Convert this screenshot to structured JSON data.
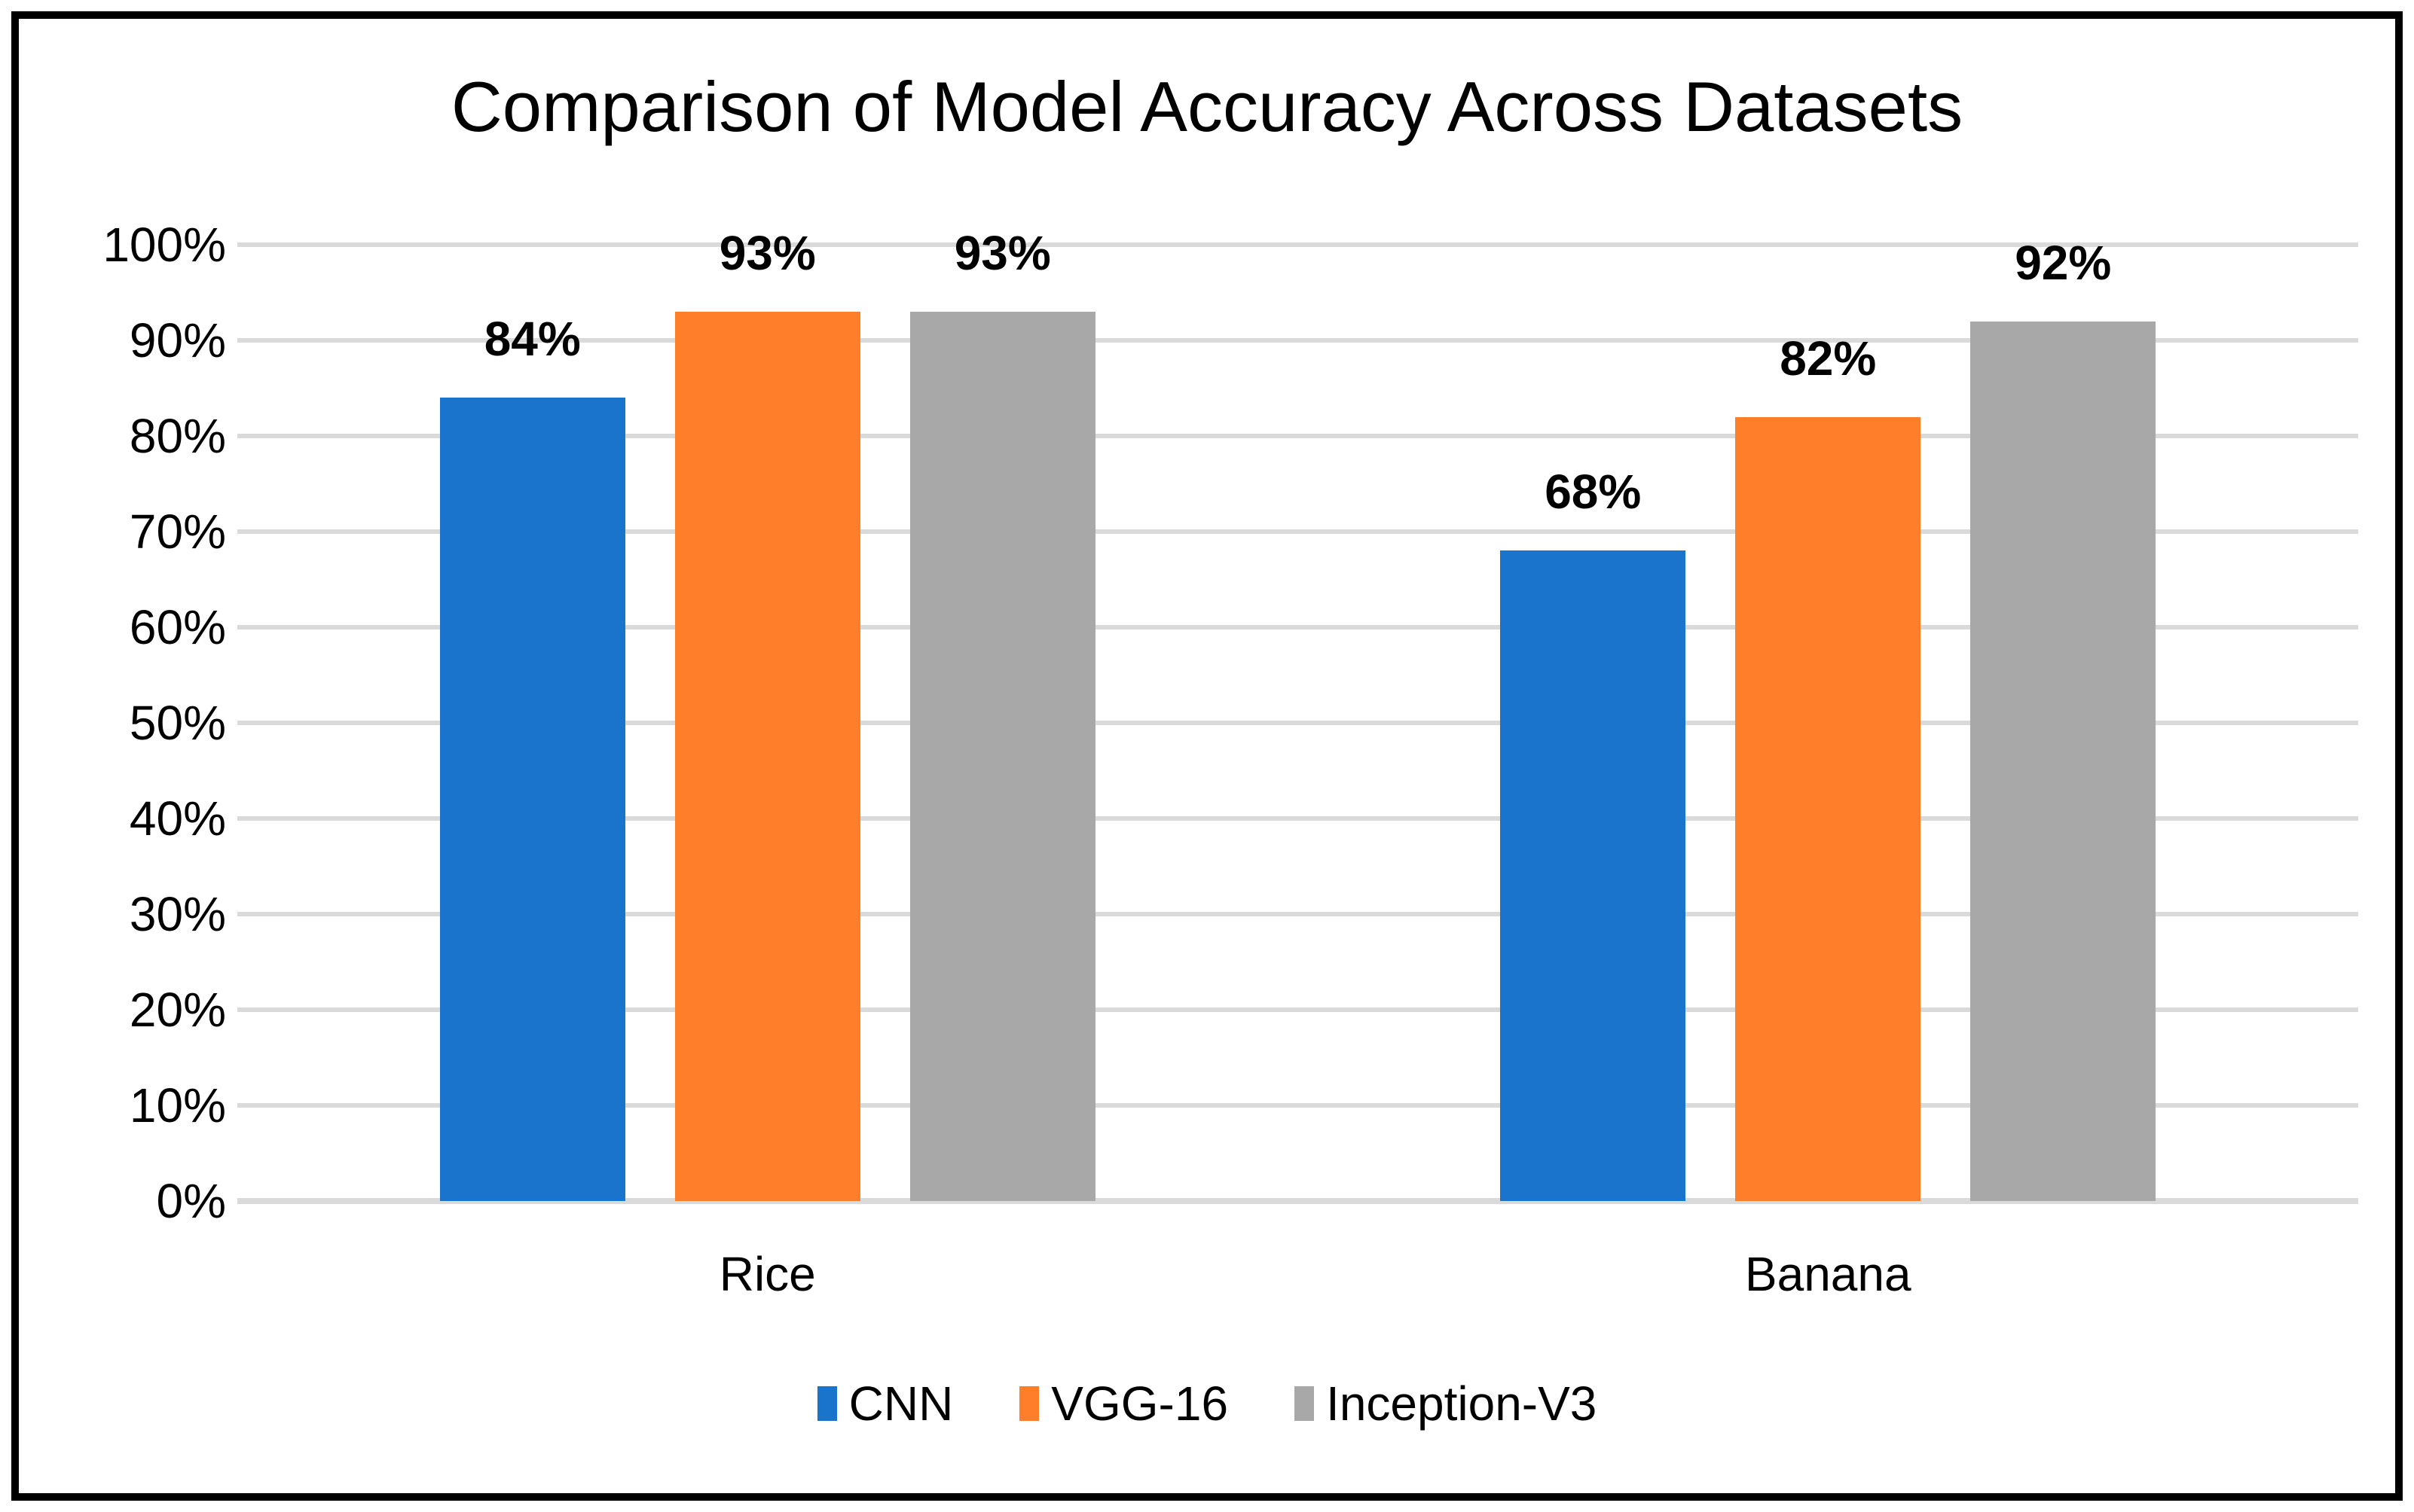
{
  "window": {
    "background_color": "#FFFFFF",
    "border_color": "#000000"
  },
  "chart_data": {
    "type": "bar",
    "title": "Comparison of Model Accuracy Across Datasets",
    "categories": [
      "Rice",
      "Banana"
    ],
    "series": [
      {
        "name": "CNN",
        "color": "#1B74CB",
        "values": [
          84,
          68
        ]
      },
      {
        "name": "VGG-16",
        "color": "#FF7E29",
        "values": [
          93,
          82
        ]
      },
      {
        "name": "Inception-V3",
        "color": "#A8A8A8",
        "values": [
          93,
          92
        ]
      }
    ],
    "value_labels": [
      [
        "84%",
        "68%"
      ],
      [
        "93%",
        "82%"
      ],
      [
        "93%",
        "92%"
      ]
    ],
    "ylim": [
      0,
      100
    ],
    "y_tick_step": 10,
    "y_tick_labels": [
      "0%",
      "10%",
      "20%",
      "30%",
      "40%",
      "50%",
      "60%",
      "70%",
      "80%",
      "90%",
      "100%"
    ],
    "grid": true,
    "gridline_color": "#DADADA",
    "data_labels": true,
    "legend_position": "bottom",
    "text_color": "#000000"
  }
}
